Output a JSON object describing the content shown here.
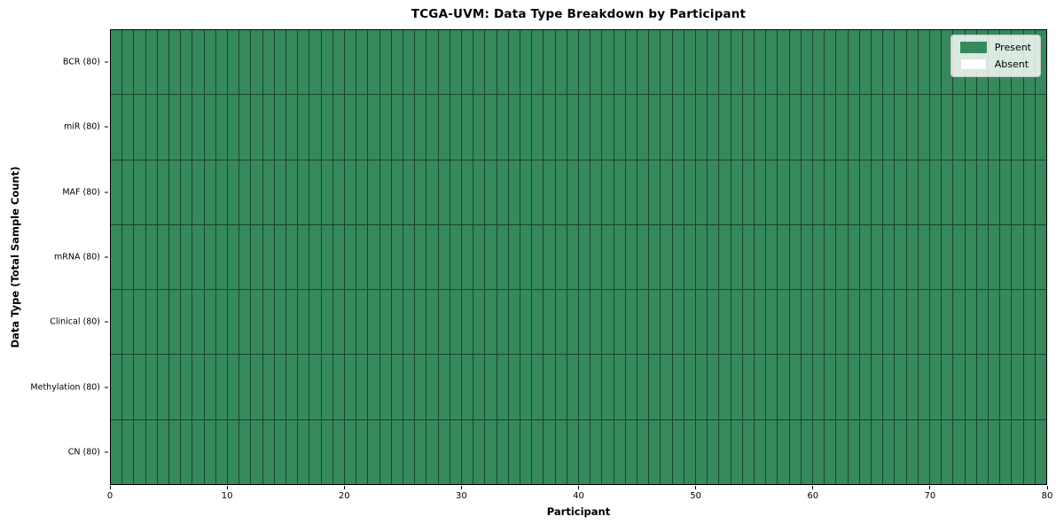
{
  "chart_data": {
    "type": "heatmap",
    "title": "TCGA-UVM: Data Type Breakdown by Participant",
    "xlabel": "Participant",
    "ylabel": "Data Type (Total Sample Count)",
    "x_range": [
      0,
      80
    ],
    "x_ticks": [
      "0",
      "10",
      "20",
      "30",
      "40",
      "50",
      "60",
      "70",
      "80"
    ],
    "n_participants": 80,
    "rows": [
      {
        "label": "BCR (80)",
        "data_type": "BCR",
        "total_samples": 80,
        "present_count": 80,
        "absent_count": 0
      },
      {
        "label": "miR (80)",
        "data_type": "miR",
        "total_samples": 80,
        "present_count": 80,
        "absent_count": 0
      },
      {
        "label": "MAF (80)",
        "data_type": "MAF",
        "total_samples": 80,
        "present_count": 80,
        "absent_count": 0
      },
      {
        "label": "mRNA (80)",
        "data_type": "mRNA",
        "total_samples": 80,
        "present_count": 80,
        "absent_count": 0
      },
      {
        "label": "Clinical (80)",
        "data_type": "Clinical",
        "total_samples": 80,
        "present_count": 80,
        "absent_count": 0
      },
      {
        "label": "Methylation (80)",
        "data_type": "Methylation",
        "total_samples": 80,
        "present_count": 80,
        "absent_count": 0
      },
      {
        "label": "CN (80)",
        "data_type": "CN",
        "total_samples": 80,
        "present_count": 80,
        "absent_count": 0
      }
    ],
    "legend": {
      "position": "upper right",
      "entries": [
        {
          "label": "Present",
          "color": "#35895b"
        },
        {
          "label": "Absent",
          "color": "#ffffff"
        }
      ]
    },
    "colors": {
      "present": "#35895b",
      "absent": "#ffffff",
      "cell_edge": "#1b452e",
      "axis_spine": "#000000"
    }
  }
}
